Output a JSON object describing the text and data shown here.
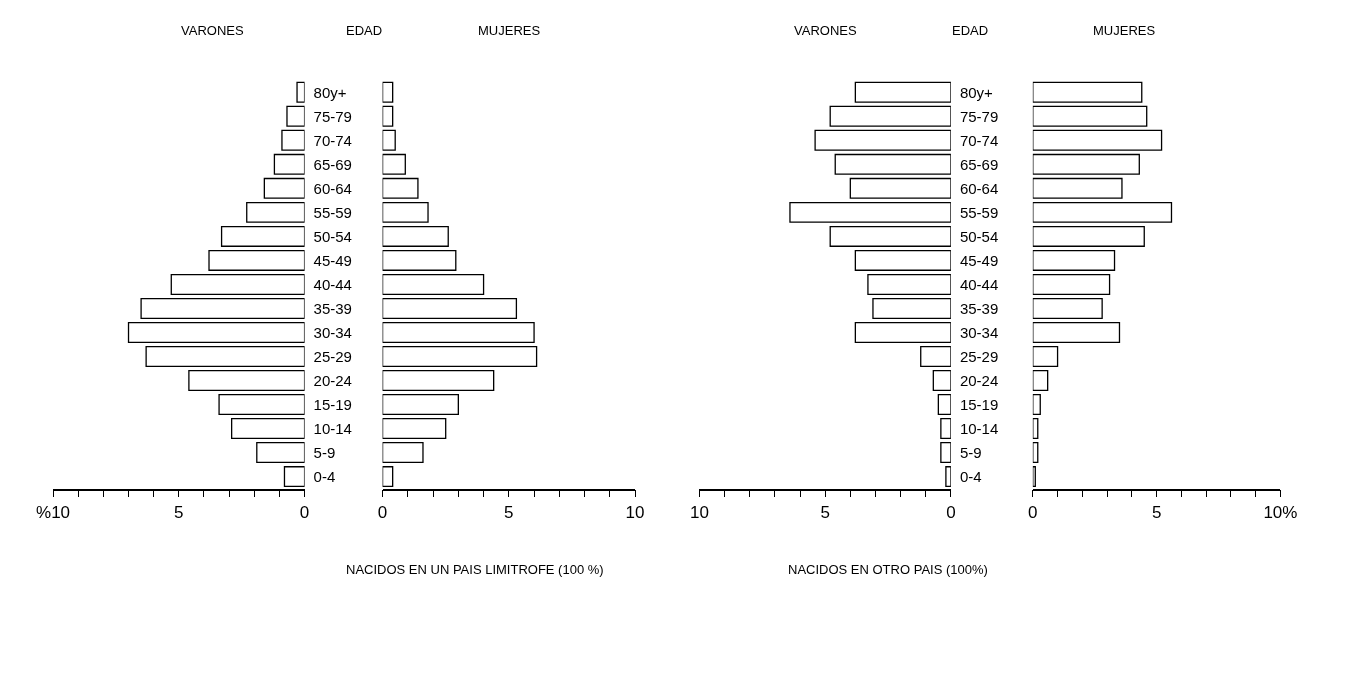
{
  "chart_data": [
    {
      "type": "bar",
      "orientation": "horizontal",
      "title": "VARONES",
      "ylabel": "EDAD",
      "categories": [
        "80y+",
        "75-79",
        "70-74",
        "65-69",
        "60-64",
        "55-59",
        "50-54",
        "45-49",
        "40-44",
        "35-39",
        "30-34",
        "25-29",
        "20-24",
        "15-19",
        "10-14",
        "5-9",
        "0-4"
      ],
      "values": [
        0.3,
        0.7,
        0.9,
        1.2,
        1.6,
        2.3,
        3.3,
        3.8,
        5.3,
        6.5,
        7.0,
        6.3,
        4.6,
        3.4,
        2.9,
        1.9,
        0.8
      ],
      "color": "#ffffff",
      "xlim": [
        10,
        0
      ],
      "xticks": [
        {
          "value": 10,
          "label": "%10"
        },
        {
          "value": 9,
          "label": null
        },
        {
          "value": 8,
          "label": null
        },
        {
          "value": 7,
          "label": null
        },
        {
          "value": 6,
          "label": null
        },
        5,
        {
          "value": 4,
          "label": null
        },
        {
          "value": 3,
          "label": null
        },
        {
          "value": 2,
          "label": null
        },
        {
          "value": 1,
          "label": null
        },
        0
      ],
      "annotations": [
        "NACIDOS EN UN PAIS LIMITROFE (100 %)"
      ]
    },
    {
      "type": "bar",
      "orientation": "horizontal",
      "title": "MUJERES",
      "tick_labels": "x",
      "values": [
        0.4,
        0.4,
        0.5,
        0.9,
        1.4,
        1.8,
        2.6,
        2.9,
        4.0,
        5.3,
        6.0,
        6.1,
        4.4,
        3.0,
        2.5,
        1.6,
        0.4
      ],
      "color": "#ffffff",
      "xlim": [
        0,
        10
      ],
      "xticks": [
        0,
        {
          "value": 1,
          "label": null
        },
        {
          "value": 2,
          "label": null
        },
        {
          "value": 3,
          "label": null
        },
        {
          "value": 4,
          "label": null
        },
        5,
        {
          "value": 6,
          "label": null
        },
        {
          "value": 7,
          "label": null
        },
        {
          "value": 8,
          "label": null
        },
        {
          "value": 9,
          "label": null
        },
        10
      ]
    },
    {
      "type": "bar",
      "orientation": "horizontal",
      "title": "VARONES",
      "ylabel": "EDAD",
      "categories": [
        "80y+",
        "75-79",
        "70-74",
        "65-69",
        "60-64",
        "55-59",
        "50-54",
        "45-49",
        "40-44",
        "35-39",
        "30-34",
        "25-29",
        "20-24",
        "15-19",
        "10-14",
        "5-9",
        "0-4"
      ],
      "values": [
        3.8,
        4.8,
        5.4,
        4.6,
        4.0,
        6.4,
        4.8,
        3.8,
        3.3,
        3.1,
        3.8,
        1.2,
        0.7,
        0.5,
        0.4,
        0.4,
        0.2
      ],
      "color": "#ffffff",
      "xlim": [
        10,
        0
      ],
      "xticks": [
        10,
        {
          "value": 9,
          "label": null
        },
        {
          "value": 8,
          "label": null
        },
        {
          "value": 7,
          "label": null
        },
        {
          "value": 6,
          "label": null
        },
        5,
        {
          "value": 4,
          "label": null
        },
        {
          "value": 3,
          "label": null
        },
        {
          "value": 2,
          "label": null
        },
        {
          "value": 1,
          "label": null
        },
        0
      ],
      "annotations": [
        "NACIDOS EN OTRO PAIS (100%)"
      ]
    },
    {
      "type": "bar",
      "orientation": "horizontal",
      "title": "MUJERES",
      "tick_labels": "x",
      "values": [
        4.4,
        4.6,
        5.2,
        4.3,
        3.6,
        5.6,
        4.5,
        3.3,
        3.1,
        2.8,
        3.5,
        1.0,
        0.6,
        0.3,
        0.2,
        0.2,
        0.1
      ],
      "color": "#ffffff",
      "xlim": [
        0,
        10
      ],
      "xticks": [
        0,
        {
          "value": 1,
          "label": null
        },
        {
          "value": 2,
          "label": null
        },
        {
          "value": 3,
          "label": null
        },
        {
          "value": 4,
          "label": null
        },
        5,
        {
          "value": 6,
          "label": null
        },
        {
          "value": 7,
          "label": null
        },
        {
          "value": 8,
          "label": null
        },
        {
          "value": 9,
          "label": null
        },
        {
          "value": 10,
          "label": "10%"
        }
      ]
    }
  ]
}
